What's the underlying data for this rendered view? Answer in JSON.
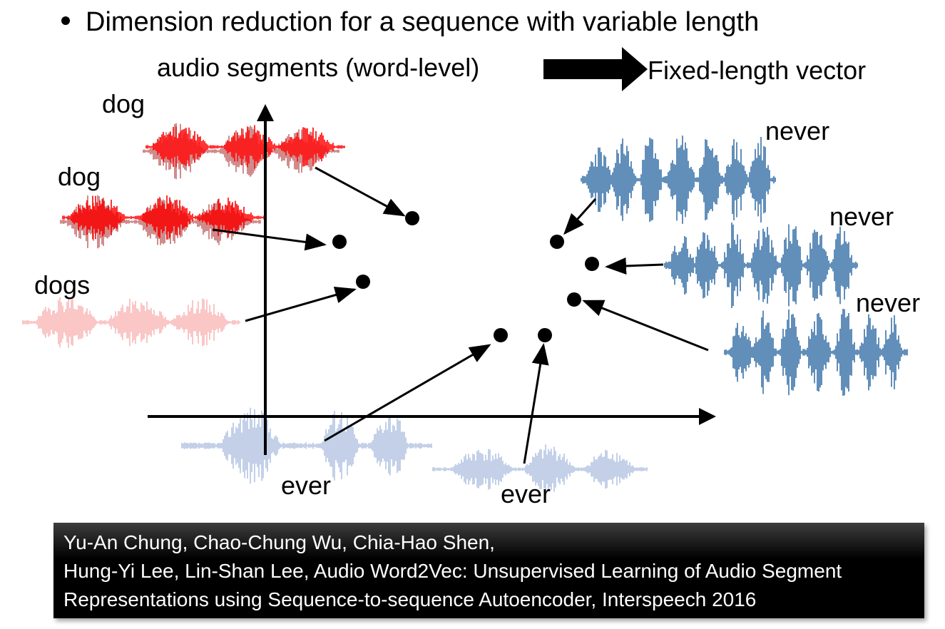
{
  "bullet_text": "Dimension reduction for a sequence with variable length",
  "input_label": "audio segments (word-level)",
  "output_label": "Fixed-length vector",
  "words": {
    "dog1": "dog",
    "dog2": "dog",
    "dogs": "dogs",
    "never1": "never",
    "never2": "never",
    "never3": "never",
    "ever1": "ever",
    "ever2": "ever"
  },
  "colors": {
    "dog": "#ff0000",
    "dog_shadow": "#b04040",
    "dogs": "#f8b8b8",
    "never": "#3a73a8",
    "ever": "#b4c4e2"
  },
  "citation": {
    "line1": "Yu-An Chung, Chao-Chung Wu, Chia-Hao Shen,",
    "line2": "Hung-Yi Lee, Lin-Shan Lee, Audio Word2Vec: Unsupervised Learning of Audio Segment",
    "line3": "Representations using Sequence-to-sequence Autoencoder, Interspeech 2016"
  }
}
